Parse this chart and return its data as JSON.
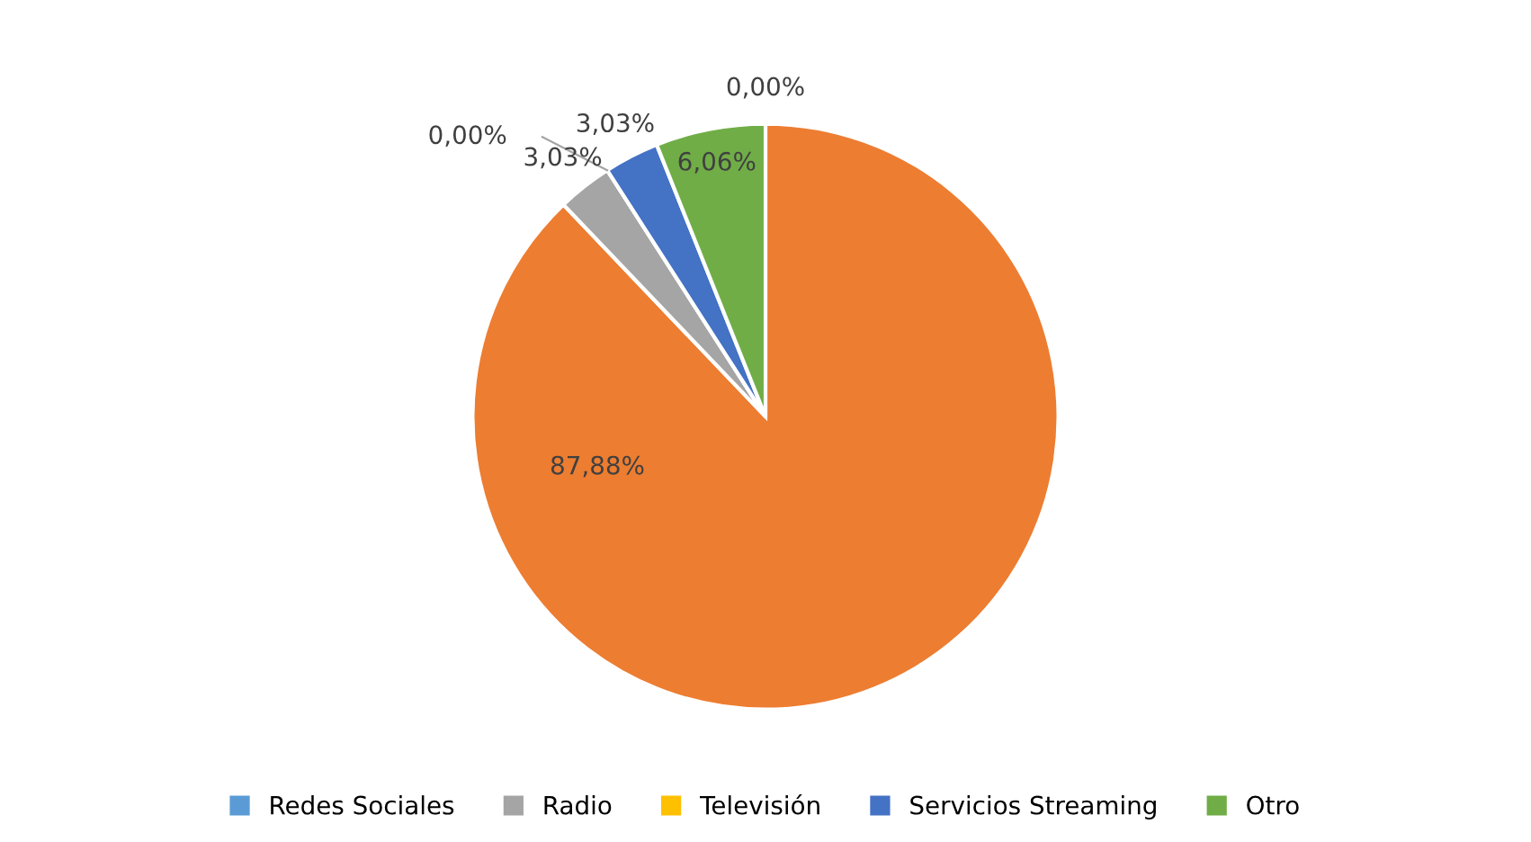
{
  "chart_data": {
    "type": "pie",
    "categories": [
      "Redes Sociales",
      null,
      "Radio",
      "Televisión",
      "Servicios Streaming",
      "Otro"
    ],
    "values": [
      0,
      87.88,
      3.03,
      0,
      3.03,
      6.06
    ],
    "colors": [
      "#5b9bd5",
      "#ed7d31",
      "#a5a5a5",
      "#ffc000",
      "#4472c4",
      "#70ad47"
    ],
    "value_labels": [
      "0,00%",
      "87,88%",
      "3,03%",
      "0,00%",
      "3,03%",
      "6,06%"
    ],
    "legend": "bottom"
  }
}
